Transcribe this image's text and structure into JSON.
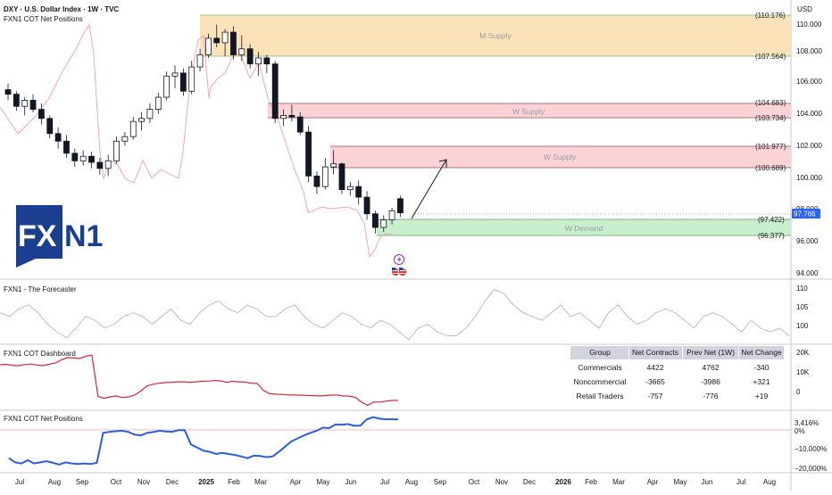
{
  "header": {
    "title": "DXY · U.S. Dollar Index · 1W · TVC",
    "subtitle": "FXN1 COT Net Positions",
    "currency": "USD"
  },
  "logo": {
    "text_fx": "FX",
    "text_n1": "N1"
  },
  "main_pane": {
    "y_ticks": [
      "110.000",
      "108.000",
      "106.000",
      "104.000",
      "102.000",
      "100.000",
      "98.000",
      "96.000",
      "94.000"
    ],
    "current_price": "97.766",
    "levels": [
      {
        "value": "(110.176)"
      },
      {
        "value": "(107.564)"
      },
      {
        "value": "(104.683)"
      },
      {
        "value": "(103.734)"
      },
      {
        "value": "(101.977)"
      },
      {
        "value": "(100.689)"
      },
      {
        "value": "(97.422)"
      },
      {
        "value": "(96.377)"
      }
    ],
    "zones": [
      {
        "label": "M Supply",
        "color": "#fbe2b8"
      },
      {
        "label": "W Supply",
        "color": "#f9d3d6"
      },
      {
        "label": "W Supply",
        "color": "#f9d3d6"
      },
      {
        "label": "W Demand",
        "color": "#c8efcc"
      }
    ]
  },
  "forecaster_pane": {
    "title": "FXN1 - The Forecaster",
    "y_ticks": [
      "110",
      "105",
      "100"
    ]
  },
  "dashboard_pane": {
    "title": "FXN1 COT Dashboard",
    "y_ticks": [
      "20K",
      "10K",
      "0"
    ],
    "table": {
      "headers": [
        "Group",
        "Net Contracts",
        "Prev Net (1W)",
        "Net Change"
      ],
      "rows": [
        {
          "group": "Commercials",
          "net": "4422",
          "prev": "4762",
          "change": "-340",
          "change_color": "#e0525f"
        },
        {
          "group": "Noncommercial",
          "net": "-3665",
          "prev": "-3986",
          "change": "+321",
          "change_color": "#4caf50"
        },
        {
          "group": "Retail Traders",
          "net": "-757",
          "prev": "-776",
          "change": "+19",
          "change_color": "#4caf50"
        }
      ]
    }
  },
  "cot_pane": {
    "title": "FXN1 COT Net Positions",
    "y_ticks": [
      "3,416%",
      "0%",
      "−10,000%",
      "−20,000%"
    ]
  },
  "x_axis": {
    "labels": [
      "Jul",
      "Aug",
      "Sep",
      "Oct",
      "Nov",
      "Dec",
      "2025",
      "Feb",
      "Mar",
      "Apr",
      "May",
      "Jun",
      "Jul",
      "Aug",
      "Sep",
      "Oct",
      "Nov",
      "Dec",
      "2026",
      "Feb",
      "Mar",
      "Apr",
      "May",
      "Jun",
      "Jul",
      "Aug"
    ]
  },
  "chart_data": [
    {
      "type": "candlestick",
      "title": "DXY · U.S. Dollar Index · 1W · TVC",
      "ylim": [
        93.5,
        111
      ],
      "x_unit": "week index (0 = first visible week, ~Jun 2024)",
      "ohlc": [
        [
          105.9,
          106.3,
          105.2,
          105.6
        ],
        [
          105.6,
          105.8,
          104.5,
          104.8
        ],
        [
          104.8,
          105.4,
          104.2,
          105.2
        ],
        [
          105.2,
          105.6,
          104.4,
          104.6
        ],
        [
          104.6,
          105.0,
          103.6,
          104.0
        ],
        [
          104.0,
          104.2,
          102.7,
          103.0
        ],
        [
          103.0,
          103.4,
          102.0,
          102.5
        ],
        [
          102.5,
          102.9,
          101.4,
          101.7
        ],
        [
          101.7,
          102.0,
          100.8,
          101.2
        ],
        [
          101.2,
          101.9,
          100.9,
          101.5
        ],
        [
          101.5,
          101.8,
          100.7,
          101.1
        ],
        [
          101.1,
          101.4,
          100.3,
          100.7
        ],
        [
          100.7,
          101.6,
          100.2,
          101.2
        ],
        [
          101.2,
          102.8,
          101.0,
          102.5
        ],
        [
          102.5,
          103.1,
          102.2,
          102.8
        ],
        [
          102.8,
          104.1,
          102.6,
          103.8
        ],
        [
          103.8,
          104.4,
          103.2,
          104.0
        ],
        [
          104.0,
          105.0,
          103.7,
          104.6
        ],
        [
          104.6,
          105.7,
          104.3,
          105.4
        ],
        [
          105.4,
          107.1,
          105.2,
          106.8
        ],
        [
          106.8,
          107.5,
          106.0,
          107.0
        ],
        [
          107.0,
          107.3,
          105.5,
          105.8
        ],
        [
          105.8,
          107.8,
          105.6,
          107.4
        ],
        [
          107.4,
          108.6,
          107.1,
          108.2
        ],
        [
          108.2,
          109.6,
          108.0,
          109.3
        ],
        [
          109.3,
          110.2,
          108.7,
          109.0
        ],
        [
          109.0,
          109.9,
          108.1,
          109.7
        ],
        [
          109.7,
          110.1,
          107.9,
          108.2
        ],
        [
          108.2,
          109.5,
          107.8,
          108.6
        ],
        [
          108.6,
          108.9,
          107.3,
          107.6
        ],
        [
          107.6,
          108.4,
          106.8,
          108.0
        ],
        [
          108.0,
          108.2,
          107.0,
          107.6
        ],
        [
          107.6,
          107.8,
          103.7,
          104.0
        ],
        [
          104.0,
          104.6,
          103.5,
          104.2
        ],
        [
          104.2,
          104.9,
          103.8,
          104.1
        ],
        [
          104.1,
          104.4,
          102.9,
          103.1
        ],
        [
          103.1,
          103.5,
          99.8,
          100.2
        ],
        [
          100.2,
          100.5,
          99.0,
          99.5
        ],
        [
          99.5,
          101.4,
          99.3,
          100.8
        ],
        [
          100.8,
          101.9,
          100.3,
          101.0
        ],
        [
          101.0,
          101.1,
          99.0,
          99.3
        ],
        [
          99.3,
          99.8,
          98.9,
          99.5
        ],
        [
          99.5,
          99.9,
          98.3,
          98.8
        ],
        [
          98.8,
          99.2,
          97.3,
          97.7
        ],
        [
          97.7,
          97.9,
          96.4,
          96.8
        ],
        [
          96.8,
          97.6,
          96.5,
          97.3
        ],
        [
          97.3,
          98.1,
          97.0,
          97.9
        ],
        [
          98.7,
          98.9,
          97.5,
          97.766
        ]
      ]
    },
    {
      "type": "line",
      "title": "FXN1 - The Forecaster",
      "ylim": [
        96.5,
        112
      ],
      "values": [
        104,
        103,
        105,
        106,
        104,
        101,
        99,
        97.5,
        100,
        103,
        102,
        100,
        101,
        103,
        104,
        103,
        101,
        103,
        105,
        102,
        101,
        104,
        106,
        107,
        105,
        104,
        106,
        105,
        103,
        103,
        105,
        106,
        103,
        101,
        100,
        102,
        104,
        103,
        101,
        100,
        102,
        101,
        99,
        97,
        100,
        101,
        99,
        98,
        98,
        100,
        103,
        107,
        110,
        109,
        106,
        104,
        103,
        102,
        104,
        106,
        103,
        104,
        102,
        100,
        104,
        106,
        103,
        101,
        102,
        104,
        105,
        104,
        102,
        100,
        103,
        104,
        103,
        101,
        99,
        102,
        100,
        99,
        100,
        98
      ]
    },
    {
      "type": "line",
      "title": "FXN1 COT Dashboard",
      "ylim": [
        -3000,
        22000
      ],
      "series": [
        {
          "color": "#d3263b",
          "values": [
            15000,
            15200,
            14800,
            14600,
            15100,
            15300,
            14900,
            14700,
            15200,
            15700,
            17000,
            18000,
            17800,
            17600,
            18500,
            19000,
            2000,
            1200,
            1800,
            2200,
            1500,
            1800,
            2500,
            4200,
            6300,
            7000,
            7400,
            7700,
            7800,
            8000,
            8000,
            7800,
            8000,
            8200,
            8300,
            8500,
            8400,
            7800,
            8200,
            8000,
            7900,
            7400,
            7300,
            4500,
            3100,
            2900,
            2800,
            2600,
            2600,
            2500,
            2400,
            2300,
            2200,
            2300,
            2500,
            2600,
            2200,
            2100,
            1600,
            -300,
            -1700,
            -400,
            -300,
            0,
            300,
            400
          ]
        }
      ]
    },
    {
      "type": "line",
      "title": "FXN1 COT Net Positions",
      "ylim": [
        -21500,
        6500
      ],
      "series": [
        {
          "color": "#2b5fd9",
          "values": [
            -15000,
            -17000,
            -17500,
            -16000,
            -17500,
            -17000,
            -16500,
            -17200,
            -18000,
            -17000,
            -17500,
            -17800,
            -17500,
            -17800,
            -17200,
            -3000,
            -2500,
            -2200,
            -2000,
            -2500,
            -3800,
            -4200,
            -3000,
            -2600,
            -2000,
            -2300,
            -2500,
            -1700,
            -1700,
            -8500,
            -10000,
            -11500,
            -12000,
            -13000,
            -12500,
            -13000,
            -13500,
            -14200,
            -15000,
            -13800,
            -14000,
            -14500,
            -14200,
            -12000,
            -9500,
            -7000,
            -5600,
            -4200,
            -3000,
            -2000,
            -500,
            -700,
            1000,
            900,
            1200,
            400,
            500,
            3400,
            4500,
            3800,
            3500,
            3500,
            3400
          ]
        }
      ]
    }
  ]
}
